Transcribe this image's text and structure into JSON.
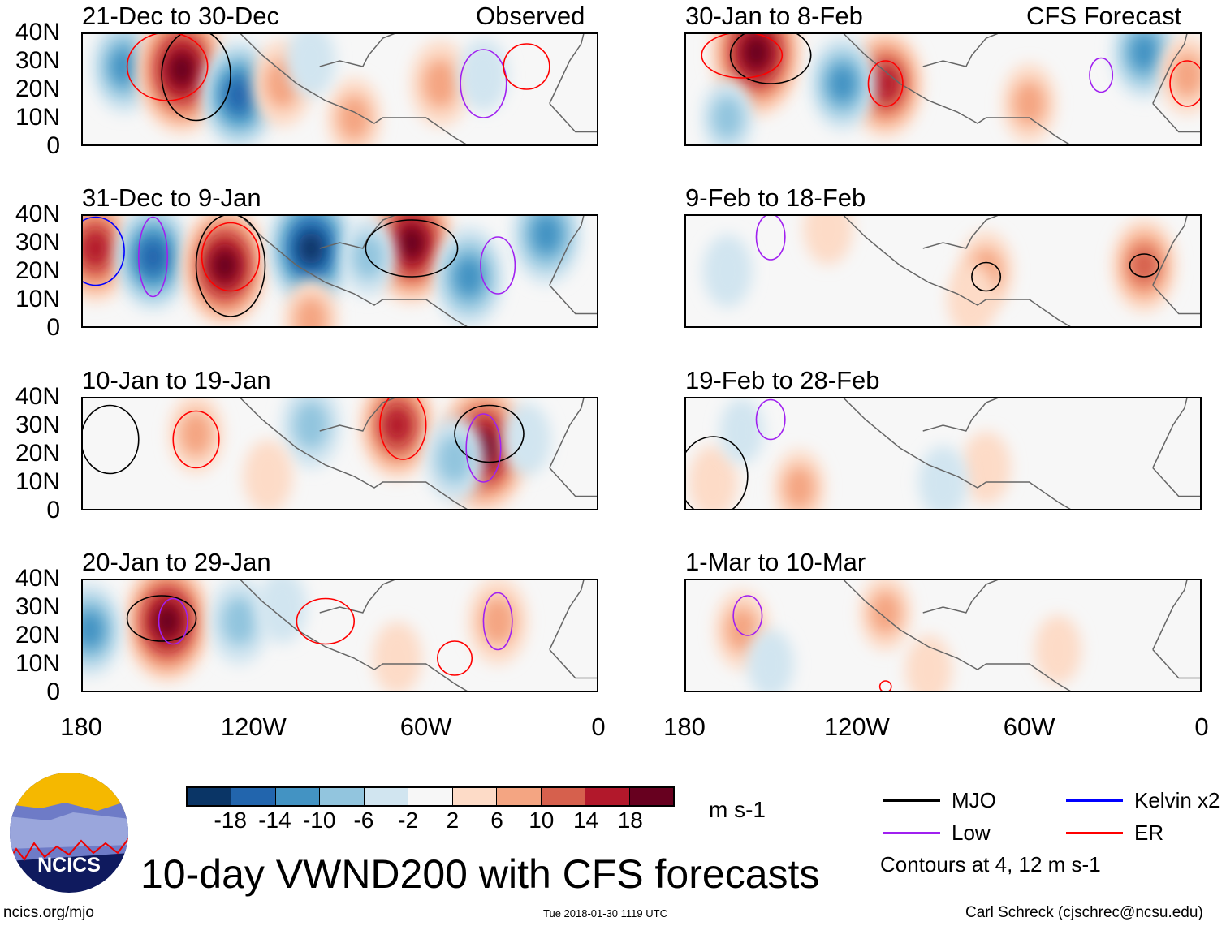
{
  "header": {
    "left_label": "Observed",
    "right_label": "CFS Forecast"
  },
  "lat_ticks": [
    "40N",
    "30N",
    "20N",
    "10N",
    "0"
  ],
  "lon_ticks": [
    "180",
    "120W",
    "60W",
    "0"
  ],
  "chart_data": {
    "type": "heatmap",
    "title": "10-day VWND200 with CFS forecasts",
    "variable": "200 hPa meridional wind anomaly",
    "units": "m s-1",
    "lon_range": [
      -180,
      0
    ],
    "lat_range": [
      0,
      40
    ],
    "colorbar": {
      "labels": [
        "-18",
        "-14",
        "-10",
        "-6",
        "-2",
        "2",
        "6",
        "10",
        "14",
        "18"
      ],
      "colors": [
        "#0a3566",
        "#2265ad",
        "#4393c3",
        "#92c5de",
        "#d1e5f0",
        "#f7f7f7",
        "#fddbc7",
        "#f4a582",
        "#d6604d",
        "#b2182b",
        "#67001f"
      ]
    },
    "contour_note": "Contours at 4, 12 m s-1",
    "legend": [
      {
        "label": "MJO",
        "color": "#000000"
      },
      {
        "label": "Kelvin x2",
        "color": "#0000ff"
      },
      {
        "label": "Low",
        "color": "#a020f0"
      },
      {
        "label": "ER",
        "color": "#ff0000"
      }
    ],
    "panels": [
      {
        "title": "21-Dec to 30-Dec",
        "source": "Observed",
        "anomalies": [
          [
            -165,
            28,
            -10
          ],
          [
            -145,
            27,
            20
          ],
          [
            -125,
            18,
            -14
          ],
          [
            -110,
            22,
            8
          ],
          [
            -85,
            10,
            6
          ],
          [
            -55,
            22,
            8
          ],
          [
            -40,
            25,
            -4
          ],
          [
            -100,
            30,
            -4
          ]
        ],
        "contours": [
          [
            "MJO",
            -140,
            25,
            12,
            16
          ],
          [
            "ER",
            -150,
            28,
            14,
            12
          ],
          [
            "Low",
            -40,
            22,
            8,
            12
          ],
          [
            "ER",
            -25,
            28,
            8,
            8
          ]
        ]
      },
      {
        "title": "31-Dec to 9-Jan",
        "source": "Observed",
        "anomalies": [
          [
            -175,
            28,
            14
          ],
          [
            -155,
            25,
            -14
          ],
          [
            -130,
            22,
            18
          ],
          [
            -100,
            28,
            -18
          ],
          [
            -65,
            30,
            18
          ],
          [
            -45,
            18,
            -12
          ],
          [
            -18,
            33,
            -12
          ],
          [
            -100,
            3,
            6
          ],
          [
            -80,
            25,
            -6
          ]
        ],
        "contours": [
          [
            "MJO",
            -128,
            22,
            12,
            18
          ],
          [
            "MJO",
            -65,
            28,
            16,
            10
          ],
          [
            "Low",
            -155,
            25,
            5,
            14
          ],
          [
            "Low",
            -35,
            22,
            6,
            10
          ],
          [
            "Kelvin x2",
            -175,
            27,
            10,
            12
          ],
          [
            "ER",
            -128,
            25,
            10,
            12
          ]
        ]
      },
      {
        "title": "10-Jan to 19-Jan",
        "source": "Observed",
        "anomalies": [
          [
            -70,
            30,
            14
          ],
          [
            -40,
            22,
            20
          ],
          [
            -100,
            30,
            -8
          ],
          [
            -50,
            18,
            -8
          ],
          [
            -140,
            27,
            6
          ],
          [
            -25,
            25,
            -4
          ],
          [
            -115,
            12,
            4
          ]
        ],
        "contours": [
          [
            "MJO",
            -170,
            25,
            10,
            12
          ],
          [
            "MJO",
            -38,
            27,
            12,
            10
          ],
          [
            "Low",
            -40,
            22,
            6,
            12
          ],
          [
            "ER",
            -140,
            25,
            8,
            10
          ],
          [
            "ER",
            -68,
            30,
            8,
            12
          ]
        ]
      },
      {
        "title": "20-Jan to 29-Jan",
        "source": "Observed",
        "anomalies": [
          [
            -150,
            25,
            18
          ],
          [
            -177,
            22,
            -10
          ],
          [
            -125,
            25,
            -8
          ],
          [
            -35,
            25,
            8
          ],
          [
            -70,
            12,
            4
          ],
          [
            -110,
            30,
            -4
          ]
        ],
        "contours": [
          [
            "MJO",
            -152,
            26,
            12,
            8
          ],
          [
            "Low",
            -148,
            25,
            5,
            8
          ],
          [
            "Low",
            -35,
            25,
            5,
            10
          ],
          [
            "ER",
            -50,
            12,
            6,
            6
          ],
          [
            "ER",
            -95,
            25,
            10,
            8
          ]
        ]
      },
      {
        "title": "30-Jan to 8-Feb",
        "source": "CFS Forecast",
        "anomalies": [
          [
            -155,
            33,
            20
          ],
          [
            -110,
            22,
            14
          ],
          [
            -125,
            22,
            -10
          ],
          [
            -20,
            33,
            -10
          ],
          [
            -5,
            25,
            6
          ],
          [
            -60,
            15,
            6
          ],
          [
            -165,
            10,
            -5
          ]
        ],
        "contours": [
          [
            "MJO",
            -150,
            32,
            14,
            10
          ],
          [
            "ER",
            -110,
            22,
            6,
            8
          ],
          [
            "ER",
            -160,
            32,
            14,
            8
          ],
          [
            "Low",
            -35,
            25,
            4,
            6
          ],
          [
            "ER",
            -5,
            22,
            6,
            8
          ]
        ]
      },
      {
        "title": "9-Feb to 18-Feb",
        "source": "CFS Forecast",
        "anomalies": [
          [
            -20,
            22,
            10
          ],
          [
            -75,
            20,
            6
          ],
          [
            -165,
            20,
            -4
          ],
          [
            -80,
            10,
            4
          ],
          [
            -130,
            35,
            4
          ]
        ],
        "contours": [
          [
            "MJO",
            -20,
            22,
            5,
            4
          ],
          [
            "MJO",
            -75,
            18,
            5,
            5
          ],
          [
            "Low",
            -150,
            32,
            5,
            8
          ]
        ]
      },
      {
        "title": "19-Feb to 28-Feb",
        "source": "CFS Forecast",
        "anomalies": [
          [
            -170,
            10,
            4
          ],
          [
            -75,
            15,
            4
          ],
          [
            -90,
            10,
            -4
          ],
          [
            -140,
            8,
            5
          ],
          [
            -160,
            28,
            -2
          ]
        ],
        "contours": [
          [
            "MJO",
            -170,
            12,
            12,
            14
          ],
          [
            "Low",
            -150,
            32,
            5,
            7
          ]
        ]
      },
      {
        "title": "1-Mar to 10-Mar",
        "source": "CFS Forecast",
        "anomalies": [
          [
            -160,
            22,
            6
          ],
          [
            -110,
            28,
            5
          ],
          [
            -150,
            10,
            -3
          ],
          [
            -50,
            15,
            3
          ],
          [
            -95,
            8,
            3
          ]
        ],
        "contours": [
          [
            "Low",
            -158,
            27,
            5,
            7
          ],
          [
            "ER",
            -110,
            2,
            2,
            2
          ]
        ]
      }
    ]
  },
  "colorbar_units": "m s-1",
  "footer": {
    "logo_text": "NCICS",
    "url": "ncics.org/mjo",
    "timestamp": "Tue 2018-01-30 1119 UTC",
    "author": "Carl Schreck (cjschrec@ncsu.edu)"
  }
}
